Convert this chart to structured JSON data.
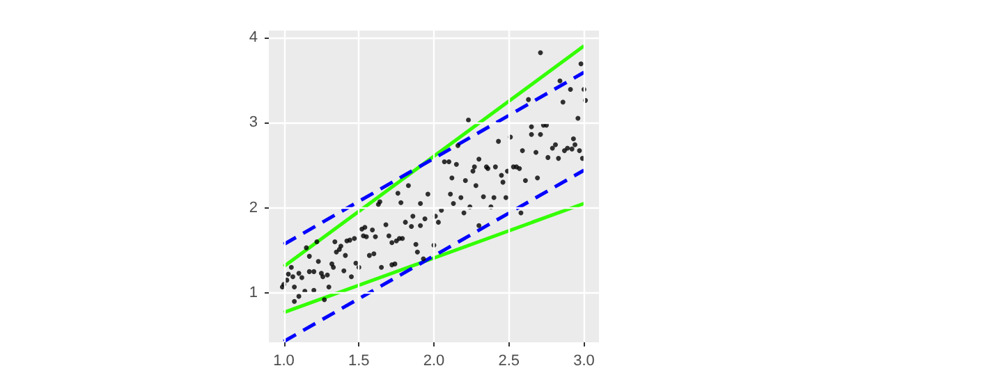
{
  "chart_data": {
    "type": "scatter",
    "xlim": [
      0.9,
      3.1
    ],
    "ylim": [
      0.42,
      4.08
    ],
    "xticks": [
      {
        "value": 1,
        "label": "1.0"
      },
      {
        "value": 1.5,
        "label": "1.5"
      },
      {
        "value": 2,
        "label": "2.0"
      },
      {
        "value": 2.5,
        "label": "2.5"
      },
      {
        "value": 3,
        "label": "3.0"
      }
    ],
    "yticks": [
      1,
      2,
      3,
      4
    ],
    "grid": true,
    "series": [
      {
        "marker": "circle",
        "color": "#000000",
        "x": [
          0.99,
          1.0,
          1.02,
          1.03,
          1.05,
          1.06,
          1.07,
          1.07,
          1.1,
          1.1,
          1.12,
          1.14,
          1.15,
          1.17,
          1.17,
          1.2,
          1.2,
          1.22,
          1.23,
          1.25,
          1.26,
          1.27,
          1.29,
          1.3,
          1.32,
          1.33,
          1.34,
          1.35,
          1.37,
          1.38,
          1.4,
          1.41,
          1.42,
          1.44,
          1.45,
          1.47,
          1.48,
          1.5,
          1.52,
          1.53,
          1.54,
          1.55,
          1.57,
          1.59,
          1.6,
          1.61,
          1.63,
          1.64,
          1.65,
          1.68,
          1.7,
          1.72,
          1.72,
          1.74,
          1.75,
          1.76,
          1.77,
          1.78,
          1.79,
          1.81,
          1.83,
          1.85,
          1.86,
          1.88,
          1.89,
          1.91,
          1.91,
          1.93,
          1.94,
          1.96,
          2.0,
          2.01,
          2.03,
          2.05,
          2.07,
          2.1,
          2.11,
          2.12,
          2.13,
          2.15,
          2.16,
          2.18,
          2.2,
          2.21,
          2.23,
          2.24,
          2.26,
          2.27,
          2.28,
          2.3,
          2.3,
          2.33,
          2.35,
          2.36,
          2.38,
          2.4,
          2.41,
          2.43,
          2.45,
          2.46,
          2.48,
          2.49,
          2.51,
          2.53,
          2.55,
          2.57,
          2.58,
          2.59,
          2.61,
          2.63,
          2.65,
          2.65,
          2.68,
          2.69,
          2.71,
          2.71,
          2.73,
          2.75,
          2.76,
          2.79,
          2.81,
          2.83,
          2.84,
          2.86,
          2.87,
          2.89,
          2.91,
          2.92,
          2.93,
          2.94,
          2.96,
          2.97,
          2.98,
          2.99,
          3.0,
          3.01
        ],
        "values": [
          1.07,
          1.1,
          1.15,
          1.22,
          1.3,
          1.19,
          1.07,
          0.9,
          0.96,
          1.23,
          1.18,
          1.02,
          1.53,
          1.43,
          1.25,
          1.25,
          1.03,
          1.6,
          1.37,
          1.23,
          1.19,
          0.92,
          1.21,
          1.07,
          1.34,
          1.3,
          1.6,
          1.48,
          1.51,
          1.55,
          1.26,
          1.44,
          1.61,
          1.62,
          1.19,
          1.64,
          1.35,
          1.3,
          1.75,
          1.67,
          1.77,
          1.66,
          1.44,
          1.74,
          1.46,
          1.66,
          2.04,
          2.07,
          1.3,
          1.8,
          1.67,
          1.59,
          1.33,
          1.34,
          1.61,
          2.17,
          1.64,
          2.06,
          1.64,
          1.83,
          2.26,
          1.78,
          1.9,
          1.57,
          1.48,
          2.05,
          1.79,
          1.4,
          1.87,
          2.16,
          1.56,
          1.9,
          1.83,
          1.97,
          2.54,
          2.54,
          2.16,
          2.35,
          2.05,
          2.51,
          2.73,
          2.12,
          1.94,
          2.32,
          3.03,
          2.01,
          2.43,
          2.48,
          2.26,
          1.79,
          2.57,
          2.13,
          2.48,
          2.46,
          2.01,
          2.12,
          2.48,
          2.78,
          2.38,
          2.3,
          2.12,
          2.43,
          2.83,
          2.48,
          2.48,
          2.46,
          1.94,
          2.67,
          2.32,
          3.27,
          2.86,
          2.95,
          2.65,
          2.35,
          3.82,
          2.86,
          2.97,
          2.97,
          2.59,
          2.7,
          2.74,
          2.58,
          3.49,
          3.24,
          2.67,
          2.7,
          3.39,
          2.69,
          2.81,
          2.74,
          3.05,
          2.67,
          3.69,
          2.58,
          3.39,
          3.26
        ]
      },
      {
        "type": "line",
        "color": "#33ff00",
        "line_style": "solid",
        "x": [
          1,
          3
        ],
        "values": [
          1.31,
          3.9
        ]
      },
      {
        "type": "line",
        "color": "#33ff00",
        "line_style": "solid",
        "x": [
          1,
          3
        ],
        "values": [
          0.77,
          2.05
        ]
      },
      {
        "type": "line",
        "color": "#0000ff",
        "line_style": "dashed",
        "x": [
          1,
          3
        ],
        "values": [
          1.57,
          3.59
        ]
      },
      {
        "type": "line",
        "color": "#0000ff",
        "line_style": "dashed",
        "x": [
          1,
          3
        ],
        "values": [
          0.43,
          2.44
        ]
      }
    ]
  }
}
